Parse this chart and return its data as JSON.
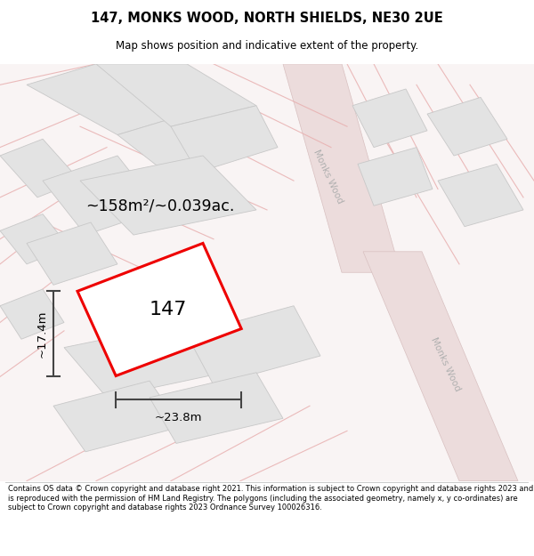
{
  "title": "147, MONKS WOOD, NORTH SHIELDS, NE30 2UE",
  "subtitle": "Map shows position and indicative extent of the property.",
  "footer": "Contains OS data © Crown copyright and database right 2021. This information is subject to Crown copyright and database rights 2023 and is reproduced with the permission of HM Land Registry. The polygons (including the associated geometry, namely x, y co-ordinates) are subject to Crown copyright and database rights 2023 Ordnance Survey 100026316.",
  "area_label": "~158m²/~0.039ac.",
  "plot_number": "147",
  "width_label": "~23.8m",
  "height_label": "~17.4m",
  "map_bg": "#f9f4f4",
  "building_fc": "#e3e3e3",
  "building_ec": "#c8c8c8",
  "road_fc": "#ecdcdc",
  "road_ec": "#d8c0c0",
  "plot_fc": "#ffffff",
  "plot_ec": "#ee0000",
  "road_line_color": "#e8b0b0",
  "road_label_color": "#b0b0b0",
  "dim_color": "#444444"
}
